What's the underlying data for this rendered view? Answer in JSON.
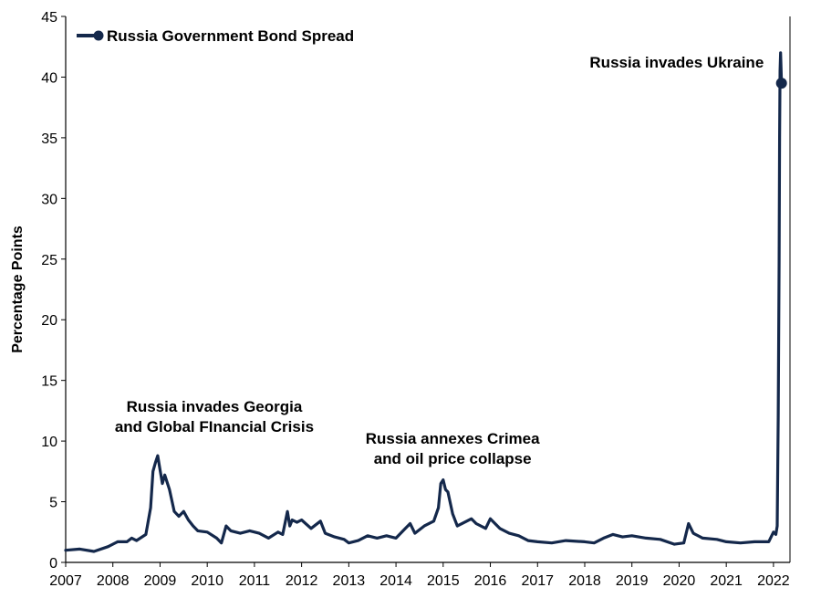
{
  "chart_data": {
    "type": "line",
    "ylabel": "Percentage Points",
    "ylim": [
      0,
      45
    ],
    "yticks": [
      "0",
      "5",
      "10",
      "15",
      "20",
      "25",
      "30",
      "35",
      "40",
      "45"
    ],
    "xlim": [
      2007,
      2022.35
    ],
    "xticks": [
      "2007",
      "2008",
      "2009",
      "2010",
      "2011",
      "2012",
      "2013",
      "2014",
      "2015",
      "2016",
      "2017",
      "2018",
      "2019",
      "2020",
      "2021",
      "2022"
    ],
    "legend": "top-left",
    "grid": false,
    "series": [
      {
        "name": "Russia Government Bond Spread",
        "color": "#14284b",
        "points": [
          [
            2007.0,
            1.0
          ],
          [
            2007.3,
            1.1
          ],
          [
            2007.6,
            0.9
          ],
          [
            2007.9,
            1.3
          ],
          [
            2008.1,
            1.7
          ],
          [
            2008.3,
            1.7
          ],
          [
            2008.4,
            2.0
          ],
          [
            2008.5,
            1.8
          ],
          [
            2008.7,
            2.3
          ],
          [
            2008.8,
            4.5
          ],
          [
            2008.85,
            7.5
          ],
          [
            2008.9,
            8.2
          ],
          [
            2008.95,
            8.8
          ],
          [
            2009.0,
            7.6
          ],
          [
            2009.05,
            6.5
          ],
          [
            2009.1,
            7.2
          ],
          [
            2009.2,
            6.0
          ],
          [
            2009.3,
            4.2
          ],
          [
            2009.4,
            3.8
          ],
          [
            2009.5,
            4.2
          ],
          [
            2009.6,
            3.5
          ],
          [
            2009.7,
            3.0
          ],
          [
            2009.8,
            2.6
          ],
          [
            2010.0,
            2.5
          ],
          [
            2010.2,
            2.0
          ],
          [
            2010.3,
            1.6
          ],
          [
            2010.4,
            3.0
          ],
          [
            2010.5,
            2.6
          ],
          [
            2010.7,
            2.4
          ],
          [
            2010.9,
            2.6
          ],
          [
            2011.1,
            2.4
          ],
          [
            2011.3,
            2.0
          ],
          [
            2011.5,
            2.5
          ],
          [
            2011.6,
            2.3
          ],
          [
            2011.7,
            4.2
          ],
          [
            2011.75,
            3.0
          ],
          [
            2011.8,
            3.5
          ],
          [
            2011.9,
            3.3
          ],
          [
            2012.0,
            3.5
          ],
          [
            2012.2,
            2.8
          ],
          [
            2012.4,
            3.4
          ],
          [
            2012.5,
            2.4
          ],
          [
            2012.7,
            2.1
          ],
          [
            2012.9,
            1.9
          ],
          [
            2013.0,
            1.6
          ],
          [
            2013.2,
            1.8
          ],
          [
            2013.4,
            2.2
          ],
          [
            2013.6,
            2.0
          ],
          [
            2013.8,
            2.2
          ],
          [
            2014.0,
            2.0
          ],
          [
            2014.2,
            2.8
          ],
          [
            2014.3,
            3.2
          ],
          [
            2014.4,
            2.4
          ],
          [
            2014.6,
            3.0
          ],
          [
            2014.8,
            3.4
          ],
          [
            2014.9,
            4.5
          ],
          [
            2014.95,
            6.5
          ],
          [
            2015.0,
            6.8
          ],
          [
            2015.05,
            6.0
          ],
          [
            2015.1,
            5.8
          ],
          [
            2015.2,
            4.0
          ],
          [
            2015.3,
            3.0
          ],
          [
            2015.5,
            3.4
          ],
          [
            2015.6,
            3.6
          ],
          [
            2015.7,
            3.2
          ],
          [
            2015.9,
            2.8
          ],
          [
            2016.0,
            3.6
          ],
          [
            2016.2,
            2.8
          ],
          [
            2016.4,
            2.4
          ],
          [
            2016.6,
            2.2
          ],
          [
            2016.8,
            1.8
          ],
          [
            2017.0,
            1.7
          ],
          [
            2017.3,
            1.6
          ],
          [
            2017.6,
            1.8
          ],
          [
            2018.0,
            1.7
          ],
          [
            2018.2,
            1.6
          ],
          [
            2018.4,
            2.0
          ],
          [
            2018.6,
            2.3
          ],
          [
            2018.8,
            2.1
          ],
          [
            2019.0,
            2.2
          ],
          [
            2019.3,
            2.0
          ],
          [
            2019.6,
            1.9
          ],
          [
            2019.9,
            1.5
          ],
          [
            2020.1,
            1.6
          ],
          [
            2020.2,
            3.2
          ],
          [
            2020.3,
            2.4
          ],
          [
            2020.5,
            2.0
          ],
          [
            2020.8,
            1.9
          ],
          [
            2021.0,
            1.7
          ],
          [
            2021.3,
            1.6
          ],
          [
            2021.6,
            1.7
          ],
          [
            2021.9,
            1.7
          ],
          [
            2022.0,
            2.5
          ],
          [
            2022.05,
            2.3
          ],
          [
            2022.08,
            3.0
          ],
          [
            2022.1,
            12.0
          ],
          [
            2022.12,
            25.0
          ],
          [
            2022.13,
            35.0
          ],
          [
            2022.14,
            40.5
          ],
          [
            2022.15,
            42.0
          ],
          [
            2022.17,
            39.5
          ]
        ]
      }
    ],
    "marker": {
      "x": 2022.17,
      "y": 39.5
    },
    "annotations": [
      {
        "lines": [
          "Russia invades Georgia",
          "and Global FInancial Crisis"
        ],
        "x": 2010.15,
        "y": 12.4
      },
      {
        "lines": [
          "Russia annexes Crimea",
          "and oil price collapse"
        ],
        "x": 2015.2,
        "y": 9.8
      },
      {
        "lines": [
          "Russia invades Ukraine"
        ],
        "x": 2019.95,
        "y": 40.8
      }
    ]
  }
}
